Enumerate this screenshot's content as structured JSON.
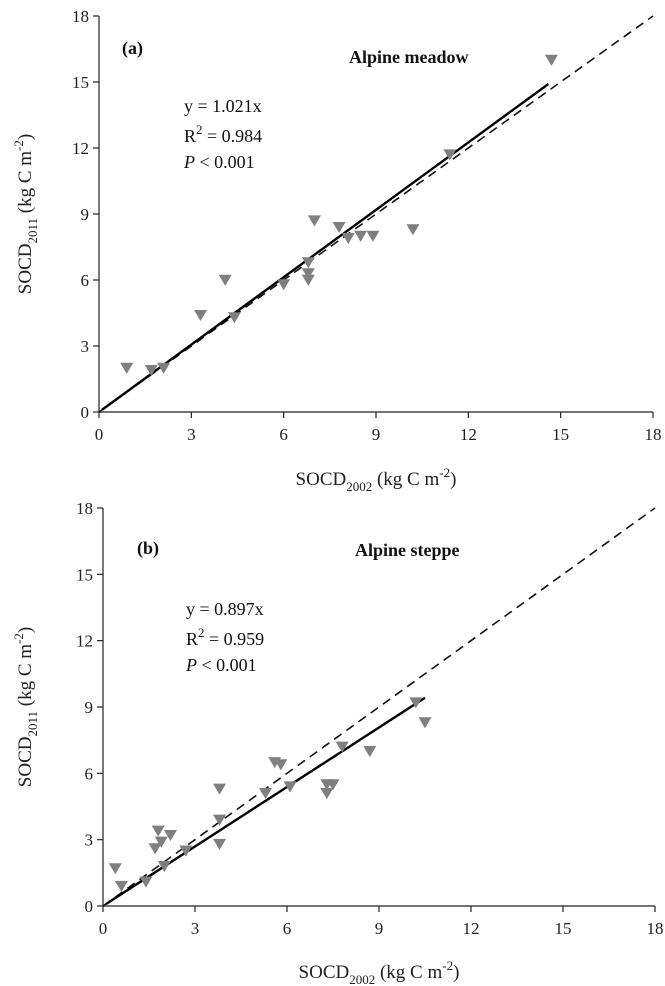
{
  "chart_data": [
    {
      "type": "scatter",
      "panel_label": "(a)",
      "title": "Alpine meadow",
      "xlabel": {
        "main": "SOCD",
        "sub": "2002",
        "unit_pre": " (kg C m",
        "unit_sup": "-2",
        "unit_post": ")"
      },
      "ylabel": {
        "main": "SOCD",
        "sub": "2011",
        "unit_pre": " (kg C m",
        "unit_sup": "-2",
        "unit_post": ")"
      },
      "xlim": [
        0,
        18
      ],
      "ylim": [
        0,
        18
      ],
      "x_ticks": [
        "0",
        "3",
        "6",
        "9",
        "12",
        "15",
        "18"
      ],
      "y_ticks": [
        "0",
        "3",
        "6",
        "9",
        "12",
        "15",
        "18"
      ],
      "grid": false,
      "marker": "down-triangle",
      "marker_color": "#7f7f7f",
      "equation": {
        "line1": "y = 1.021x",
        "r_pre": "R",
        "r_sup": "2",
        "r_post": " = 0.984",
        "p_italic": "P",
        "p_post": " < 0.001"
      },
      "fit_line": {
        "slope": 1.021,
        "x_range": [
          0.1,
          14.6
        ],
        "style": "solid"
      },
      "reference_line": {
        "slope": 1.0,
        "x_range": [
          0,
          18
        ],
        "style": "dashed",
        "label": "1:1"
      },
      "points": [
        [
          0.9,
          2.0
        ],
        [
          1.7,
          1.9
        ],
        [
          2.1,
          2.0
        ],
        [
          3.3,
          4.4
        ],
        [
          4.1,
          6.0
        ],
        [
          4.4,
          4.3
        ],
        [
          6.0,
          5.8
        ],
        [
          6.8,
          6.0
        ],
        [
          6.8,
          6.3
        ],
        [
          6.8,
          6.8
        ],
        [
          7.0,
          8.7
        ],
        [
          7.8,
          8.4
        ],
        [
          8.1,
          7.9
        ],
        [
          8.5,
          8.0
        ],
        [
          8.9,
          8.0
        ],
        [
          10.2,
          8.3
        ],
        [
          11.4,
          11.7
        ],
        [
          14.7,
          16.0
        ]
      ]
    },
    {
      "type": "scatter",
      "panel_label": "(b)",
      "title": "Alpine steppe",
      "xlabel": {
        "main": "SOCD",
        "sub": "2002",
        "unit_pre": " (kg C m",
        "unit_sup": "-2",
        "unit_post": ")"
      },
      "ylabel": {
        "main": "SOCD",
        "sub": "2011",
        "unit_pre": " (kg C m",
        "unit_sup": "-2",
        "unit_post": ")"
      },
      "xlim": [
        0,
        18
      ],
      "ylim": [
        0,
        18
      ],
      "x_ticks": [
        "0",
        "3",
        "6",
        "9",
        "12",
        "15",
        "18"
      ],
      "y_ticks": [
        "0",
        "3",
        "6",
        "9",
        "12",
        "15",
        "18"
      ],
      "grid": false,
      "marker": "down-triangle",
      "marker_color": "#7f7f7f",
      "equation": {
        "line1": "y = 0.897x",
        "r_pre": "R",
        "r_sup": "2",
        "r_post": " = 0.959",
        "p_italic": "P",
        "p_post": " < 0.001"
      },
      "fit_line": {
        "slope": 0.897,
        "x_range": [
          0.1,
          10.5
        ],
        "style": "solid"
      },
      "reference_line": {
        "slope": 1.0,
        "x_range": [
          0,
          18
        ],
        "style": "dashed",
        "label": "1:1"
      },
      "points": [
        [
          0.4,
          1.7
        ],
        [
          0.6,
          0.9
        ],
        [
          1.4,
          1.1
        ],
        [
          1.7,
          2.6
        ],
        [
          1.8,
          3.4
        ],
        [
          1.9,
          2.9
        ],
        [
          2.0,
          1.8
        ],
        [
          2.2,
          3.2
        ],
        [
          2.7,
          2.5
        ],
        [
          3.8,
          2.8
        ],
        [
          3.8,
          3.9
        ],
        [
          3.8,
          5.3
        ],
        [
          5.3,
          5.1
        ],
        [
          5.6,
          6.5
        ],
        [
          5.8,
          6.4
        ],
        [
          6.1,
          5.4
        ],
        [
          7.3,
          5.1
        ],
        [
          7.3,
          5.5
        ],
        [
          7.5,
          5.5
        ],
        [
          7.8,
          7.2
        ],
        [
          8.7,
          7.0
        ],
        [
          10.2,
          9.2
        ],
        [
          10.5,
          8.3
        ]
      ]
    }
  ]
}
